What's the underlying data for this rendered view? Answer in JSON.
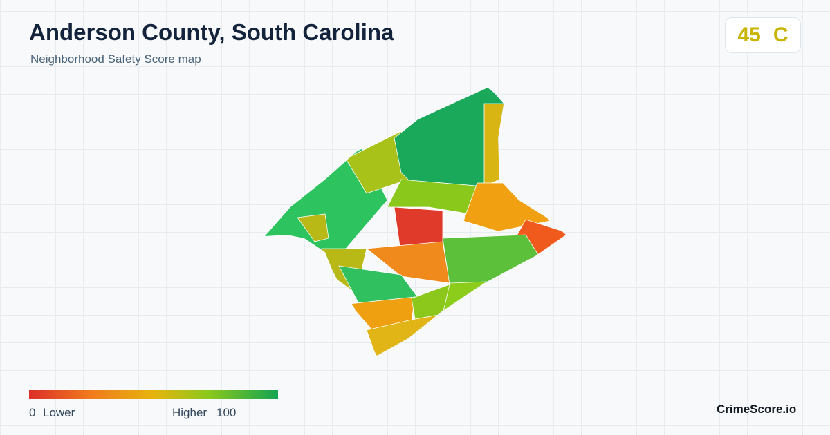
{
  "header": {
    "title": "Anderson County, South Carolina",
    "subtitle": "Neighborhood Safety Score map"
  },
  "score": {
    "value": 45,
    "grade": "C"
  },
  "legend": {
    "min": 0,
    "min_label": "Lower",
    "max_label": "Higher",
    "max": 100
  },
  "footer": {
    "brand": "CrimeScore.io"
  }
}
